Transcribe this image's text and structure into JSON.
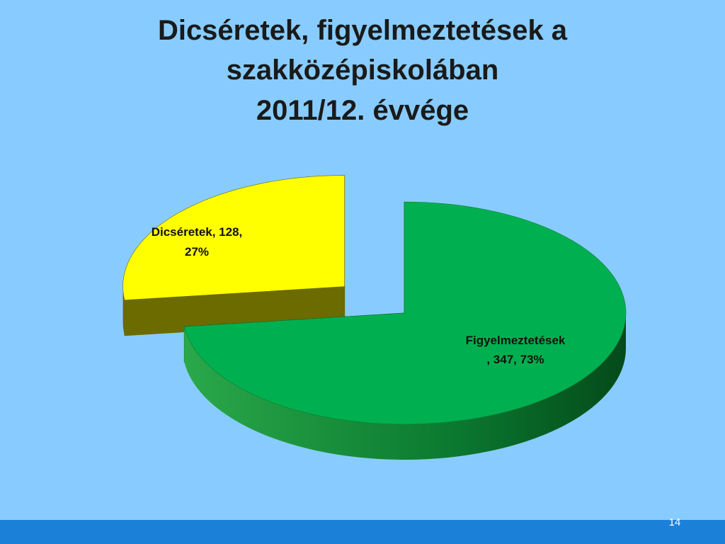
{
  "chart_data": {
    "type": "pie3d",
    "title": [
      "Dicséretek, figyelmeztetések a",
      "szakközépiskolában",
      "2011/12. évvége"
    ],
    "values": [
      128,
      347
    ],
    "value_labels": [
      [
        "Dicséretek, 128,",
        "27%"
      ],
      [
        "Figyelmeztetések",
        ", 347, 73%"
      ]
    ],
    "colors": [
      "#ffff00",
      "#00b050"
    ],
    "side_colors": [
      "#6b6b00",
      "#0a7a30"
    ]
  },
  "page_number": "14"
}
